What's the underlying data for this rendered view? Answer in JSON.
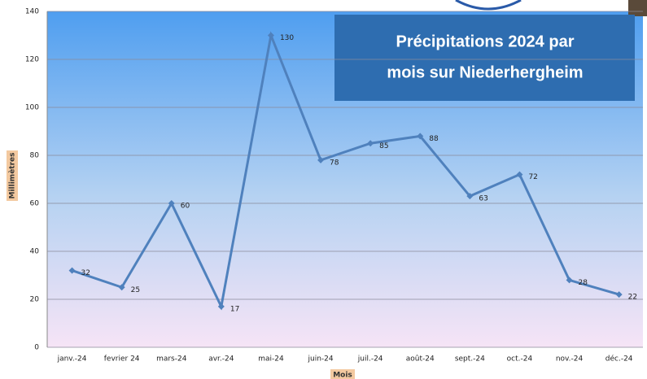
{
  "chart_data": {
    "type": "line",
    "title": [
      "Précipitations 2024 par",
      "mois sur Niederhergheim"
    ],
    "x_label": "Mois",
    "y_label": "Millimètres",
    "categories": [
      "janv.-24",
      "fevrier 24",
      "mars-24",
      "avr.-24",
      "mai-24",
      "juin-24",
      "juil.-24",
      "août-24",
      "sept.-24",
      "oct.-24",
      "nov.-24",
      "déc.-24"
    ],
    "values": [
      32,
      25,
      60,
      17,
      130,
      78,
      85,
      88,
      63,
      72,
      28,
      22
    ],
    "color": "#4f81bd",
    "ylim": [
      0,
      140
    ],
    "yticks": [
      0,
      20,
      40,
      60,
      80,
      100,
      120,
      140
    ],
    "grid": true
  }
}
